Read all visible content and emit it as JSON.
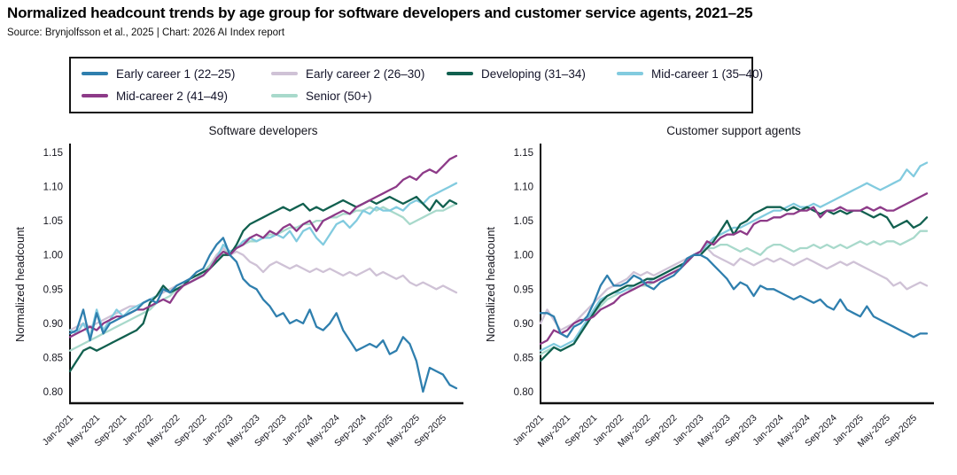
{
  "header": {
    "title": "Normalized headcount trends by age group for software developers and customer service agents, 2021–25",
    "source": "Source: Brynjolfsson et al., 2025 | Chart: 2026 AI Index report"
  },
  "legend": {
    "items": [
      {
        "label": "Early career 1 (22–25)",
        "color": "#2f7fae"
      },
      {
        "label": "Early career 2 (26–30)",
        "color": "#cfc2d6"
      },
      {
        "label": "Developing (31–34)",
        "color": "#11604f"
      },
      {
        "label": "Mid-career 1 (35–40)",
        "color": "#82cbdf"
      },
      {
        "label": "Mid-career 2 (41–49)",
        "color": "#8d3a88"
      },
      {
        "label": "Senior (50+)",
        "color": "#a8d9cb"
      }
    ]
  },
  "chart_data": [
    {
      "type": "line",
      "title": "Software developers",
      "ylabel": "Normalized headcount",
      "ylim": [
        0.8,
        1.15
      ],
      "yticks": [
        "1.15",
        "1.10",
        "1.05",
        "1.00",
        "0.95",
        "0.90",
        "0.85",
        "0.80"
      ],
      "x_start": "Jan-2021",
      "x_interval": "monthly",
      "n_points": 59,
      "xtick_labels": [
        "Jan-2021",
        "May-2021",
        "Sep-2021",
        "Jan-2022",
        "May-2022",
        "Sep-2022",
        "Jan-2023",
        "May-2023",
        "Sep-2023",
        "Jan-2024",
        "May-2024",
        "Sep-2024",
        "Jan-2025",
        "May-2025",
        "Sep-2025"
      ],
      "grid": false,
      "legend_position": "top-shared",
      "series": [
        {
          "name": "Early career 1 (22–25)",
          "color": "#2f7fae",
          "values": [
            0.885,
            0.89,
            0.92,
            0.875,
            0.915,
            0.885,
            0.9,
            0.905,
            0.91,
            0.915,
            0.92,
            0.93,
            0.935,
            0.93,
            0.95,
            0.945,
            0.955,
            0.96,
            0.965,
            0.975,
            0.98,
            1.0,
            1.015,
            1.025,
            1.0,
            0.99,
            0.965,
            0.955,
            0.95,
            0.935,
            0.925,
            0.91,
            0.915,
            0.9,
            0.905,
            0.9,
            0.92,
            0.895,
            0.89,
            0.9,
            0.915,
            0.89,
            0.875,
            0.86,
            0.865,
            0.87,
            0.865,
            0.875,
            0.855,
            0.86,
            0.88,
            0.87,
            0.845,
            0.8,
            0.835,
            0.83,
            0.825,
            0.81,
            0.805
          ]
        },
        {
          "name": "Early career 2 (26–30)",
          "color": "#cfc2d6",
          "values": [
            0.89,
            0.895,
            0.9,
            0.895,
            0.9,
            0.905,
            0.91,
            0.915,
            0.92,
            0.925,
            0.925,
            0.93,
            0.935,
            0.94,
            0.945,
            0.95,
            0.955,
            0.96,
            0.965,
            0.97,
            0.975,
            0.985,
            1.0,
            1.01,
            1.0,
            1.005,
            1.0,
            0.99,
            0.985,
            0.975,
            0.985,
            0.99,
            0.985,
            0.98,
            0.985,
            0.98,
            0.975,
            0.98,
            0.975,
            0.98,
            0.975,
            0.97,
            0.975,
            0.97,
            0.975,
            0.98,
            0.97,
            0.975,
            0.97,
            0.965,
            0.97,
            0.96,
            0.955,
            0.96,
            0.955,
            0.95,
            0.955,
            0.95,
            0.945
          ]
        },
        {
          "name": "Developing (31–34)",
          "color": "#11604f",
          "values": [
            0.83,
            0.845,
            0.86,
            0.865,
            0.86,
            0.865,
            0.87,
            0.875,
            0.88,
            0.885,
            0.89,
            0.9,
            0.93,
            0.94,
            0.955,
            0.945,
            0.95,
            0.955,
            0.965,
            0.97,
            0.975,
            0.98,
            0.99,
            1.0,
            1.0,
            1.015,
            1.035,
            1.045,
            1.05,
            1.055,
            1.06,
            1.065,
            1.07,
            1.065,
            1.07,
            1.075,
            1.065,
            1.07,
            1.065,
            1.07,
            1.075,
            1.08,
            1.075,
            1.07,
            1.075,
            1.08,
            1.075,
            1.08,
            1.085,
            1.08,
            1.075,
            1.08,
            1.085,
            1.075,
            1.065,
            1.08,
            1.07,
            1.08,
            1.075
          ]
        },
        {
          "name": "Mid-career 1 (35–40)",
          "color": "#82cbdf",
          "values": [
            0.89,
            0.885,
            0.9,
            0.88,
            0.92,
            0.89,
            0.905,
            0.92,
            0.91,
            0.92,
            0.925,
            0.93,
            0.935,
            0.94,
            0.95,
            0.945,
            0.955,
            0.96,
            0.96,
            0.965,
            0.97,
            0.98,
            0.995,
            1.015,
            1.005,
            1.01,
            1.02,
            1.025,
            1.02,
            1.025,
            1.025,
            1.03,
            1.025,
            1.035,
            1.02,
            1.035,
            1.04,
            1.025,
            1.015,
            1.03,
            1.045,
            1.05,
            1.04,
            1.05,
            1.065,
            1.06,
            1.07,
            1.065,
            1.065,
            1.07,
            1.065,
            1.075,
            1.08,
            1.075,
            1.085,
            1.09,
            1.095,
            1.1,
            1.105
          ]
        },
        {
          "name": "Mid-career 2 (41–49)",
          "color": "#8d3a88",
          "values": [
            0.88,
            0.885,
            0.89,
            0.895,
            0.89,
            0.9,
            0.905,
            0.91,
            0.91,
            0.915,
            0.92,
            0.92,
            0.925,
            0.93,
            0.935,
            0.93,
            0.945,
            0.955,
            0.96,
            0.965,
            0.97,
            0.98,
            0.995,
            1.005,
            1.0,
            1.01,
            1.015,
            1.025,
            1.03,
            1.025,
            1.035,
            1.03,
            1.04,
            1.045,
            1.035,
            1.045,
            1.05,
            1.035,
            1.05,
            1.055,
            1.06,
            1.065,
            1.06,
            1.07,
            1.075,
            1.08,
            1.085,
            1.09,
            1.095,
            1.1,
            1.11,
            1.115,
            1.11,
            1.12,
            1.125,
            1.12,
            1.13,
            1.14,
            1.145
          ]
        },
        {
          "name": "Senior (50+)",
          "color": "#a8d9cb",
          "values": [
            0.86,
            0.865,
            0.87,
            0.875,
            0.88,
            0.885,
            0.89,
            0.895,
            0.9,
            0.905,
            0.91,
            0.915,
            0.92,
            0.93,
            0.935,
            0.94,
            0.95,
            0.955,
            0.96,
            0.965,
            0.975,
            0.985,
            0.995,
            1.005,
            1.005,
            1.01,
            1.015,
            1.02,
            1.02,
            1.025,
            1.03,
            1.03,
            1.035,
            1.04,
            1.04,
            1.045,
            1.045,
            1.05,
            1.05,
            1.055,
            1.055,
            1.06,
            1.06,
            1.065,
            1.065,
            1.07,
            1.065,
            1.07,
            1.065,
            1.06,
            1.055,
            1.045,
            1.05,
            1.055,
            1.06,
            1.065,
            1.065,
            1.07,
            1.075
          ]
        }
      ]
    },
    {
      "type": "line",
      "title": "Customer support agents",
      "ylabel": "Normalized headcount",
      "ylim": [
        0.8,
        1.15
      ],
      "yticks": [
        "1.15",
        "1.10",
        "1.05",
        "1.00",
        "0.95",
        "0.90",
        "0.85",
        "0.80"
      ],
      "x_start": "Jan-2021",
      "x_interval": "monthly",
      "n_points": 59,
      "xtick_labels": [
        "Jan-2021",
        "May-2021",
        "Sep-2021",
        "Jan-2022",
        "May-2022",
        "Sep-2022",
        "Jan-2023",
        "May-2023",
        "Sep-2023",
        "Jan-2024",
        "May-2024",
        "Sep-2024",
        "Jan-2025",
        "May-2025",
        "Sep-2025"
      ],
      "grid": false,
      "legend_position": "top-shared",
      "series": [
        {
          "name": "Early career 1 (22–25)",
          "color": "#2f7fae",
          "values": [
            0.915,
            0.915,
            0.91,
            0.885,
            0.88,
            0.895,
            0.9,
            0.91,
            0.93,
            0.955,
            0.97,
            0.955,
            0.955,
            0.96,
            0.97,
            0.965,
            0.955,
            0.95,
            0.96,
            0.965,
            0.97,
            0.98,
            0.995,
            1.0,
            1.0,
            0.995,
            0.985,
            0.975,
            0.965,
            0.95,
            0.96,
            0.955,
            0.94,
            0.955,
            0.95,
            0.95,
            0.945,
            0.94,
            0.935,
            0.94,
            0.935,
            0.93,
            0.935,
            0.925,
            0.92,
            0.935,
            0.92,
            0.915,
            0.91,
            0.925,
            0.91,
            0.905,
            0.9,
            0.895,
            0.89,
            0.885,
            0.88,
            0.885,
            0.885
          ]
        },
        {
          "name": "Early career 2 (26–30)",
          "color": "#cfc2d6",
          "values": [
            0.9,
            0.92,
            0.905,
            0.89,
            0.895,
            0.9,
            0.91,
            0.92,
            0.93,
            0.94,
            0.95,
            0.955,
            0.96,
            0.965,
            0.975,
            0.97,
            0.975,
            0.97,
            0.975,
            0.98,
            0.985,
            0.99,
            0.995,
            1.0,
            1.005,
            1.01,
            1.0,
            0.995,
            0.99,
            0.985,
            0.995,
            0.99,
            0.985,
            0.99,
            0.995,
            0.99,
            0.995,
            0.99,
            0.985,
            0.99,
            0.995,
            0.99,
            0.985,
            0.98,
            0.985,
            0.99,
            0.985,
            0.99,
            0.985,
            0.98,
            0.975,
            0.97,
            0.965,
            0.955,
            0.96,
            0.95,
            0.955,
            0.96,
            0.955
          ]
        },
        {
          "name": "Developing (31–34)",
          "color": "#11604f",
          "values": [
            0.845,
            0.855,
            0.865,
            0.86,
            0.865,
            0.87,
            0.885,
            0.9,
            0.915,
            0.93,
            0.94,
            0.945,
            0.95,
            0.955,
            0.955,
            0.96,
            0.965,
            0.965,
            0.97,
            0.975,
            0.98,
            0.985,
            0.99,
            1.0,
            1.0,
            1.01,
            1.02,
            1.035,
            1.05,
            1.03,
            1.045,
            1.05,
            1.06,
            1.065,
            1.07,
            1.07,
            1.07,
            1.065,
            1.07,
            1.065,
            1.07,
            1.065,
            1.06,
            1.065,
            1.06,
            1.065,
            1.06,
            1.065,
            1.065,
            1.06,
            1.055,
            1.06,
            1.055,
            1.04,
            1.045,
            1.05,
            1.04,
            1.045,
            1.055
          ]
        },
        {
          "name": "Mid-career 1 (35–40)",
          "color": "#82cbdf",
          "values": [
            0.86,
            0.865,
            0.87,
            0.865,
            0.87,
            0.875,
            0.89,
            0.905,
            0.92,
            0.935,
            0.94,
            0.945,
            0.945,
            0.95,
            0.955,
            0.96,
            0.96,
            0.965,
            0.97,
            0.975,
            0.98,
            0.985,
            0.99,
            1.0,
            1.005,
            1.015,
            1.025,
            1.03,
            1.035,
            1.04,
            1.04,
            1.045,
            1.05,
            1.055,
            1.06,
            1.065,
            1.065,
            1.07,
            1.075,
            1.07,
            1.07,
            1.075,
            1.07,
            1.075,
            1.08,
            1.085,
            1.09,
            1.095,
            1.1,
            1.105,
            1.1,
            1.095,
            1.1,
            1.105,
            1.11,
            1.125,
            1.115,
            1.13,
            1.135
          ]
        },
        {
          "name": "Mid-career 2 (41–49)",
          "color": "#8d3a88",
          "values": [
            0.87,
            0.875,
            0.89,
            0.885,
            0.89,
            0.9,
            0.905,
            0.905,
            0.91,
            0.92,
            0.925,
            0.93,
            0.94,
            0.945,
            0.95,
            0.955,
            0.96,
            0.96,
            0.965,
            0.97,
            0.975,
            0.98,
            0.99,
            1.0,
            1.005,
            1.02,
            1.015,
            1.025,
            1.03,
            1.03,
            1.035,
            1.03,
            1.045,
            1.05,
            1.05,
            1.055,
            1.055,
            1.06,
            1.06,
            1.065,
            1.065,
            1.07,
            1.055,
            1.065,
            1.065,
            1.07,
            1.065,
            1.065,
            1.065,
            1.07,
            1.065,
            1.07,
            1.065,
            1.065,
            1.07,
            1.075,
            1.08,
            1.085,
            1.09
          ]
        },
        {
          "name": "Senior (50+)",
          "color": "#a8d9cb",
          "values": [
            0.855,
            0.86,
            0.865,
            0.86,
            0.865,
            0.87,
            0.885,
            0.9,
            0.915,
            0.925,
            0.935,
            0.94,
            0.945,
            0.95,
            0.95,
            0.955,
            0.955,
            0.96,
            0.965,
            0.97,
            0.975,
            0.98,
            0.99,
            1.0,
            1.005,
            1.01,
            1.01,
            1.015,
            1.015,
            1.01,
            1.005,
            1.01,
            1.005,
            1.0,
            1.01,
            1.015,
            1.015,
            1.01,
            1.005,
            1.01,
            1.01,
            1.015,
            1.01,
            1.015,
            1.01,
            1.015,
            1.01,
            1.015,
            1.02,
            1.015,
            1.02,
            1.015,
            1.02,
            1.02,
            1.015,
            1.02,
            1.025,
            1.035,
            1.035
          ]
        }
      ]
    }
  ]
}
